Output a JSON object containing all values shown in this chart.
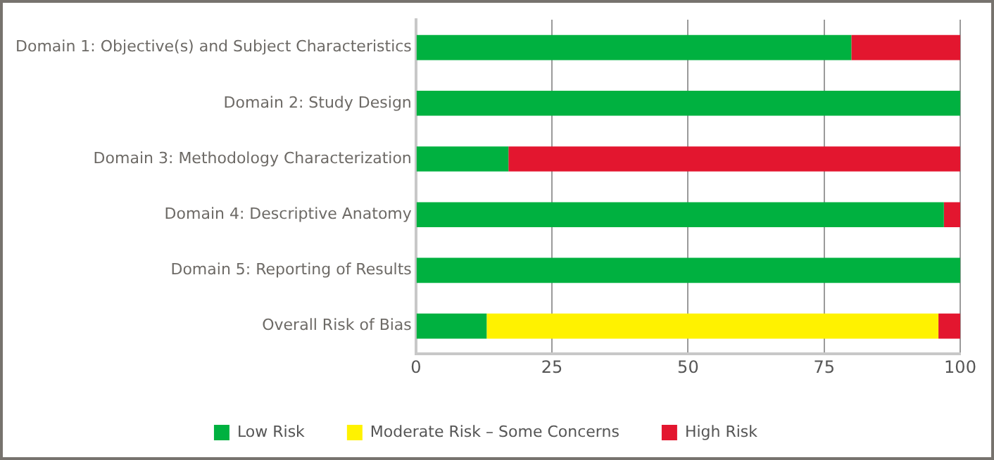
{
  "chart_data": {
    "type": "bar",
    "orientation": "horizontal",
    "stacked": true,
    "categories": [
      "Domain 1: Objective(s) and Subject Characteristics",
      "Domain 2: Study Design",
      "Domain 3: Methodology Characterization",
      "Domain 4: Descriptive Anatomy",
      "Domain 5: Reporting of Results",
      "Overall Risk of Bias"
    ],
    "series": [
      {
        "name": "Low Risk",
        "color": "#00b140",
        "values": [
          80,
          100,
          17,
          97,
          100,
          13
        ]
      },
      {
        "name": "Moderate Risk – Some Concerns",
        "color": "#fff200",
        "values": [
          0,
          0,
          0,
          0,
          0,
          83
        ]
      },
      {
        "name": "High Risk",
        "color": "#e3162f",
        "values": [
          20,
          0,
          83,
          3,
          0,
          4
        ]
      }
    ],
    "xlim": [
      0,
      100
    ],
    "xticks": [
      0,
      25,
      50,
      75,
      100
    ],
    "grid": "x",
    "legend": "bottom"
  }
}
